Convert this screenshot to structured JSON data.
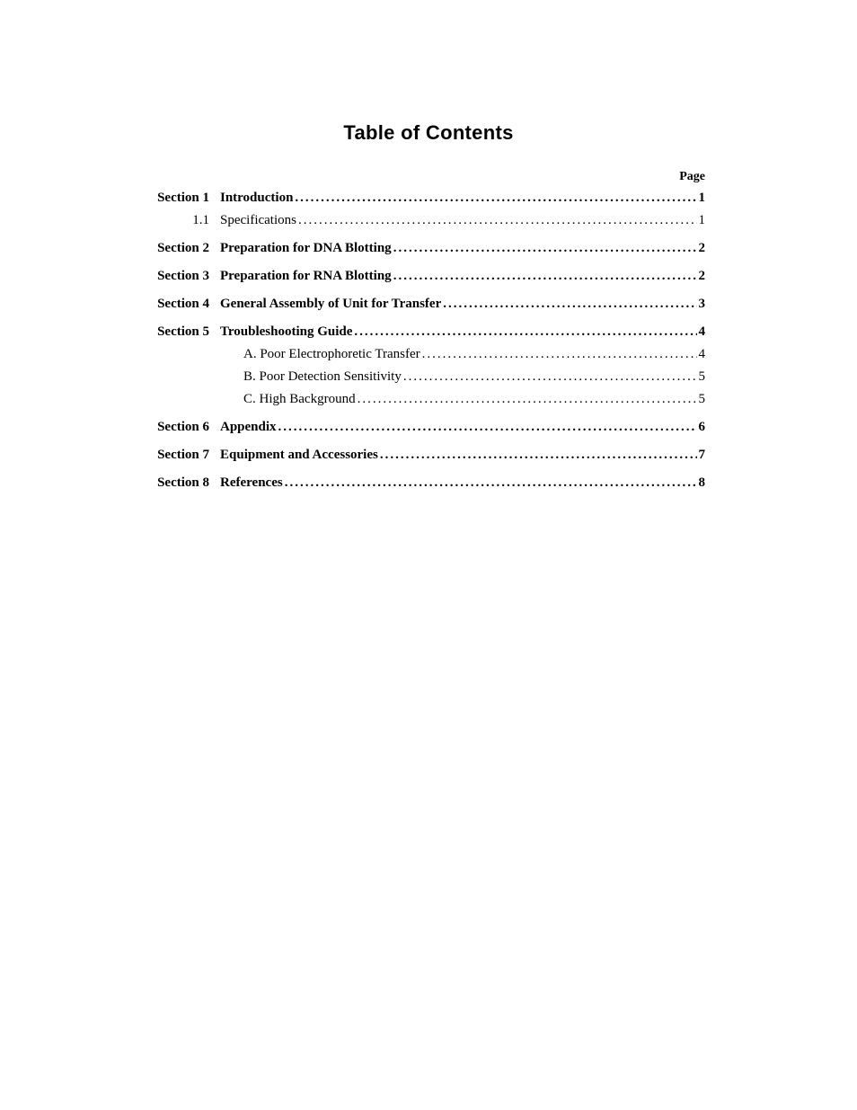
{
  "title": "Table of Contents",
  "page_header": "Page",
  "dots_normal": "........................................................................................................................................................................",
  "dots_bold": "........................................................................................................................................................................",
  "entries": [
    {
      "label": "Section 1",
      "text": "Introduction",
      "page": "1",
      "bold": true,
      "indent": 0,
      "gap": false
    },
    {
      "label": "1.1",
      "text": "Specifications",
      "page": "1",
      "bold": false,
      "indent": 0,
      "gap": true
    },
    {
      "label": "Section 2",
      "text": "Preparation for DNA Blotting",
      "page": "2",
      "bold": true,
      "indent": 0,
      "gap": true
    },
    {
      "label": "Section 3",
      "text": "Preparation for RNA Blotting",
      "page": "2",
      "bold": true,
      "indent": 0,
      "gap": true
    },
    {
      "label": "Section 4",
      "text": "General Assembly of Unit for Transfer",
      "page": "3",
      "bold": true,
      "indent": 0,
      "gap": true
    },
    {
      "label": "Section 5",
      "text": "Troubleshooting Guide",
      "page": "4",
      "bold": true,
      "indent": 0,
      "gap": false
    },
    {
      "label": "",
      "text": "A. Poor Electrophoretic Transfer",
      "page": "4",
      "bold": false,
      "indent": 1,
      "gap": false
    },
    {
      "label": "",
      "text": "B. Poor Detection Sensitivity",
      "page": "5",
      "bold": false,
      "indent": 1,
      "gap": false
    },
    {
      "label": "",
      "text": "C. High Background",
      "page": "5",
      "bold": false,
      "indent": 1,
      "gap": true
    },
    {
      "label": "Section 6",
      "text": "Appendix",
      "page": "6",
      "bold": true,
      "indent": 0,
      "gap": true
    },
    {
      "label": "Section 7",
      "text": "Equipment and Accessories",
      "page": "7",
      "bold": true,
      "indent": 0,
      "gap": true
    },
    {
      "label": "Section 8",
      "text": "References",
      "page": "8",
      "bold": true,
      "indent": 0,
      "gap": false
    }
  ]
}
